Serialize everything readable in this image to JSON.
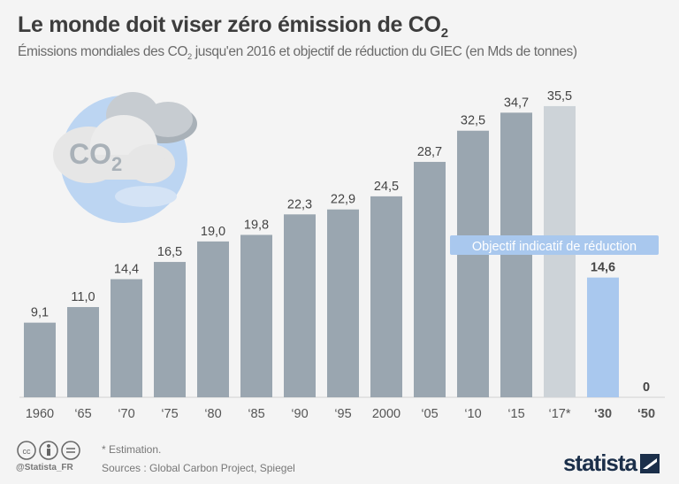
{
  "header": {
    "title": "Le monde doit viser zéro émission de CO",
    "title_sub": "2",
    "subtitle_a": "Émissions mondiales des CO",
    "subtitle_sub": "2",
    "subtitle_b": " jusqu'en 2016 et objectif de réduction du GIEC (en Mds de tonnes)"
  },
  "icon": {
    "label": "CO",
    "label_sub": "2"
  },
  "chart_data": {
    "type": "bar",
    "title": "Le monde doit viser zéro émission de CO2",
    "ylabel": "Mds de tonnes",
    "ylim": [
      0,
      36
    ],
    "categories": [
      "1960",
      "‘65",
      "‘70",
      "‘75",
      "‘80",
      "‘85",
      "‘90",
      "‘95",
      "2000",
      "‘05",
      "‘10",
      "‘15",
      "‘17*",
      "‘30",
      "‘50"
    ],
    "values": [
      9.1,
      11.0,
      14.4,
      16.5,
      19.0,
      19.8,
      22.3,
      22.9,
      24.5,
      28.7,
      32.5,
      34.7,
      35.5,
      14.6,
      0
    ],
    "labels": [
      "9,1",
      "11,0",
      "14,4",
      "16,5",
      "19,0",
      "19,8",
      "22,3",
      "22,9",
      "24,5",
      "28,7",
      "32,5",
      "34,7",
      "35,5",
      "14,6",
      "0"
    ],
    "kinds": [
      "hist",
      "hist",
      "hist",
      "hist",
      "hist",
      "hist",
      "hist",
      "hist",
      "hist",
      "hist",
      "hist",
      "hist",
      "estimate",
      "target",
      "target"
    ],
    "annotation": "Objectif indicatif de réduction",
    "colors": {
      "hist": "#9aa6b0",
      "estimate": "#cdd3d8",
      "target": "#a9c8ee",
      "annotation": "#a9c8ee"
    }
  },
  "footer": {
    "note": "* Estimation.",
    "sources": "Sources : Global Carbon Project, Spiegel",
    "handle": "@Statista_FR",
    "brand": "statista"
  }
}
